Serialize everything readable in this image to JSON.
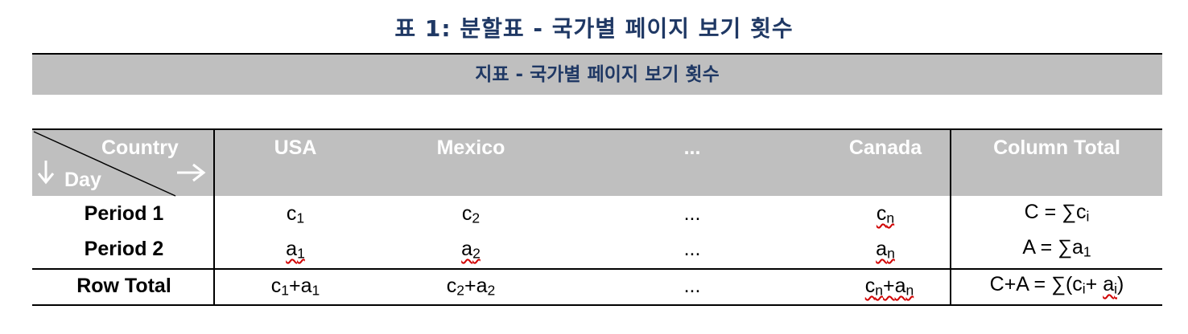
{
  "title": "표 1: 분할표 - 국가별 페이지 보기 횟수",
  "banner": "지표 - 국가별 페이지 보기 횟수",
  "header": {
    "corner_top": "Country",
    "corner_bottom": "Day",
    "columns": [
      "USA",
      "Mexico",
      "...",
      "Canada",
      "Column Total"
    ]
  },
  "rows": [
    {
      "label": "Period 1",
      "cells": [
        {
          "base": "c",
          "sub": "1"
        },
        {
          "base": "c",
          "sub": "2"
        },
        {
          "text": "..."
        },
        {
          "base": "c",
          "sub": "n"
        },
        {
          "text": "C = ∑c",
          "sub": "i"
        }
      ]
    },
    {
      "label": "Period 2",
      "cells": [
        {
          "base": "a",
          "sub": "1"
        },
        {
          "base": "a",
          "sub": "2"
        },
        {
          "text": "..."
        },
        {
          "base": "a",
          "sub": "n"
        },
        {
          "text": "A = ∑a",
          "sub": "1"
        }
      ]
    },
    {
      "label": "Row Total",
      "cells": [
        {
          "a": "c",
          "asub": "1",
          "plus": "+",
          "b": "a",
          "bsub": "1"
        },
        {
          "a": "c",
          "asub": "2",
          "plus": "+",
          "b": "a",
          "bsub": "2"
        },
        {
          "text": "..."
        },
        {
          "a": "c",
          "asub": "n",
          "plus": "+",
          "b": "a",
          "bsub": "n"
        },
        {
          "p1": "C+A = ",
          "p2": "∑",
          "p3": "(c",
          "p3sub": "i",
          "p4": "+ ",
          "p5": "a",
          "p5sub": "i",
          "p6": ")"
        }
      ]
    }
  ]
}
